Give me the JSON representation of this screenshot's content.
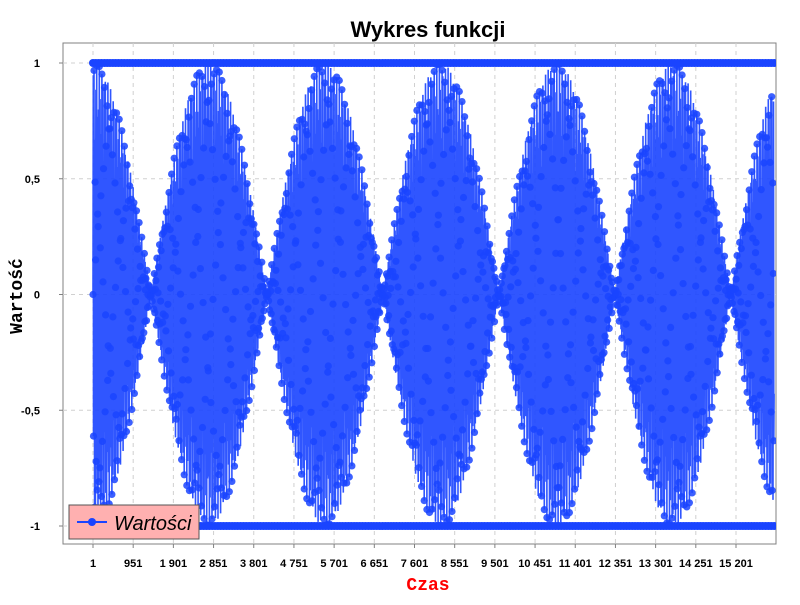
{
  "chart_data": {
    "type": "line",
    "title": "Wykres funkcji",
    "xlabel": "Czas",
    "ylabel": "Wartość",
    "xlabel_color": "#ff0000",
    "series_color": "#1a44ff",
    "plot_background": "#ffffff",
    "grid_color": "#d0d0d0",
    "grid": true,
    "legend_position": "bottom-left",
    "legend_background": "#ffb0b0",
    "x_ticks": [
      "1",
      "951",
      "1 901",
      "2 851",
      "3 801",
      "4 751",
      "5 701",
      "6 651",
      "7 601",
      "8 551",
      "9 501",
      "10 451",
      "11 401",
      "12 351",
      "13 301",
      "14 251",
      "15 201"
    ],
    "y_ticks": [
      "1",
      "0,5",
      "0",
      "-0,5",
      "-1"
    ],
    "xlim": [
      1,
      16101
    ],
    "ylim": [
      -1,
      1
    ],
    "series": [
      {
        "name": "Wartości",
        "marker": "circle",
        "function": "oscillating signal between -1 and 1, sampled at each time step from 1 to about 16 100",
        "x": [
          1,
          951,
          1901,
          2851,
          3801,
          4751,
          5701,
          6651,
          7601,
          8551,
          9501,
          10451,
          11401,
          12351,
          13301,
          14251,
          15201,
          16101
        ],
        "y_min": -1,
        "y_max": 1
      }
    ]
  }
}
